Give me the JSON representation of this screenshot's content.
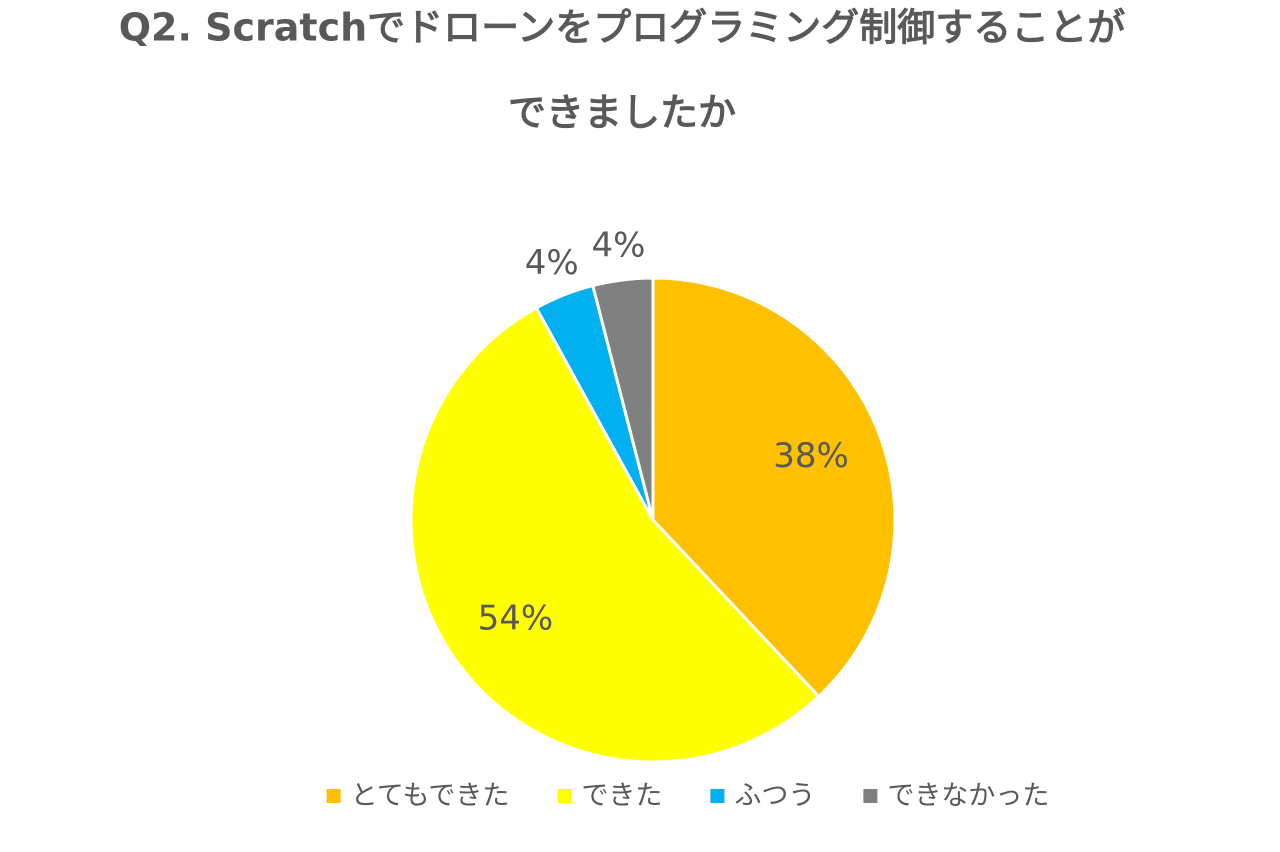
{
  "chart_data": {
    "type": "pie",
    "title": [
      "Q2. Scratchでドローンをプログラミング制御することが",
      "できましたか"
    ],
    "categories": [
      "とてもできた",
      "できた",
      "ふつう",
      "できなかった"
    ],
    "values": [
      38,
      54,
      4,
      4
    ],
    "value_labels": [
      "38%",
      "54%",
      "4%",
      "4%"
    ],
    "colors": [
      "#FFC000",
      "#FFFF00",
      "#00B0F0",
      "#808080"
    ],
    "legend": "bottom"
  }
}
